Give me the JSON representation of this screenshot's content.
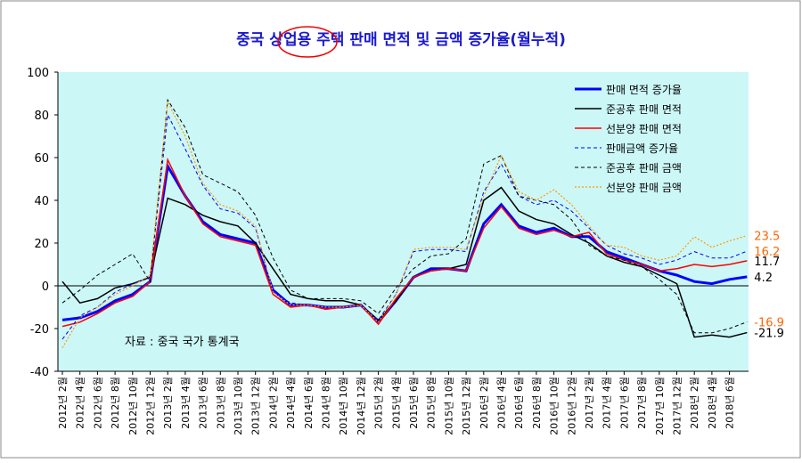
{
  "chart_data": {
    "type": "line",
    "title": "중국 상업용 주택 판매 면적 및 금액 증가율(월누적)",
    "annotation": "자료 : 중국 국가 통계국",
    "categories": [
      "2012년 2월",
      "2012년 4월",
      "2012년 6월",
      "2012년 8월",
      "2012년 10월",
      "2012년 12월",
      "2013년 2월",
      "2013년 4월",
      "2013년 6월",
      "2013년 8월",
      "2013년 10월",
      "2013년 12월",
      "2014년 2월",
      "2014년 4월",
      "2014년 6월",
      "2014년 8월",
      "2014년 10월",
      "2014년 12월",
      "2015년 2월",
      "2015년 4월",
      "2015년 6월",
      "2015년 8월",
      "2015년 10월",
      "2015년 12월",
      "2016년 2월",
      "2016년 4월",
      "2016년 6월",
      "2016년 8월",
      "2016년 10월",
      "2016년 12월",
      "2017년 2월",
      "2017년 4월",
      "2017년 6월",
      "2017년 8월",
      "2017년 10월",
      "2017년 12월",
      "2018년 2월",
      "2018년 4월",
      "2018년 6월",
      null
    ],
    "ylim": [
      -40,
      100
    ],
    "yticks": [
      -40,
      -20,
      0,
      20,
      40,
      60,
      80,
      100
    ],
    "grid": false,
    "legend": "upper right",
    "series": [
      {
        "name": "판매 면적 증가율",
        "color": "#0000ff",
        "line_style": "solid",
        "width": 3,
        "label_color": "#000000",
        "values": [
          -16,
          -15,
          -12,
          -7,
          -4,
          2,
          56,
          42,
          30,
          24,
          22,
          20,
          -2,
          -9,
          -9,
          -10,
          -10,
          -9,
          -17,
          -7,
          4,
          8,
          8,
          7,
          29,
          38,
          28,
          25,
          27,
          23,
          23,
          16,
          13,
          10,
          7,
          5,
          2,
          1,
          3,
          4.2
        ]
      },
      {
        "name": "준공후 판매 면적",
        "color": "#000000",
        "line_style": "solid",
        "width": 1.5,
        "label_color": "#000000",
        "values": [
          2,
          -8,
          -6,
          -1,
          1,
          4,
          41,
          38,
          33,
          30,
          28,
          20,
          8,
          -4,
          -6,
          -7,
          -7,
          -9,
          -16,
          -7,
          4,
          7,
          8,
          10,
          40,
          46,
          35,
          31,
          29,
          24,
          20,
          14,
          11,
          9,
          5,
          1,
          -24,
          -23,
          -24,
          -21.9
        ]
      },
      {
        "name": "선분양  판매 면적",
        "color": "#ff0000",
        "line_style": "solid",
        "width": 1.5,
        "label_color": "#000000",
        "values": [
          -19,
          -17,
          -13,
          -8,
          -5,
          2,
          59,
          42,
          29,
          23,
          21,
          19,
          -4,
          -10,
          -9,
          -11,
          -10,
          -9,
          -18,
          -6,
          4,
          7,
          8,
          7,
          27,
          37,
          27,
          24,
          26,
          23,
          25,
          15,
          12,
          10,
          7,
          8,
          10,
          9,
          10,
          11.7
        ]
      },
      {
        "name": "판매금액 증가율",
        "color": "#0000ff",
        "line_style": "dashed",
        "width": 1,
        "label_color": "#ff6600",
        "values": [
          -25,
          -14,
          -10,
          -3,
          1,
          4,
          80,
          64,
          47,
          36,
          34,
          27,
          -3,
          -8,
          -9,
          -10,
          -10,
          -9,
          -16,
          -4,
          16,
          17,
          17,
          16,
          44,
          57,
          42,
          38,
          40,
          35,
          27,
          19,
          15,
          13,
          10,
          12,
          16,
          13,
          13,
          16.2
        ]
      },
      {
        "name": "준공후 판매 금액",
        "color": "#000000",
        "line_style": "dashed",
        "width": 1,
        "label_color": "#ff6600",
        "values": [
          -8,
          -2,
          5,
          10,
          15,
          2,
          87,
          74,
          52,
          48,
          44,
          33,
          13,
          -2,
          -6,
          -6,
          -6,
          -7,
          -13,
          -1,
          8,
          14,
          15,
          22,
          57,
          61,
          42,
          40,
          38,
          31,
          19,
          14,
          12,
          9,
          3,
          -4,
          -22,
          -22,
          -20,
          -16.9
        ]
      },
      {
        "name": "선분양 판매 금액",
        "color": "#ff9900",
        "line_style": "dotted",
        "width": 1.2,
        "label_color": "#ff6600",
        "values": [
          -29,
          -15,
          -10,
          -4,
          0,
          5,
          86,
          70,
          48,
          38,
          35,
          28,
          -3,
          -9,
          -9,
          -10,
          -10,
          -9,
          -17,
          -4,
          17,
          18,
          18,
          17,
          42,
          61,
          44,
          40,
          45,
          38,
          28,
          19,
          18,
          14,
          12,
          14,
          23,
          18,
          21,
          23.5
        ]
      }
    ]
  }
}
